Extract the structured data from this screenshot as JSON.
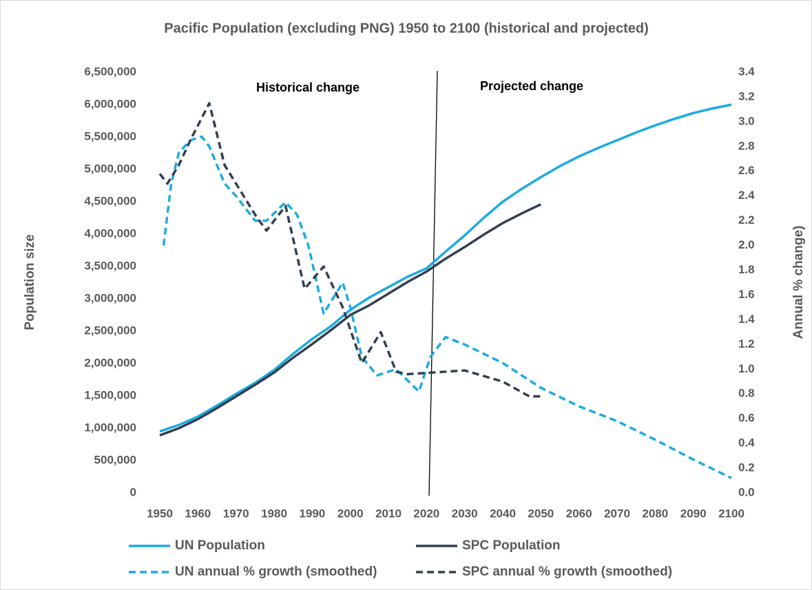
{
  "chart_data": {
    "type": "line",
    "title": "Pacific Population (excluding PNG) 1950 to 2100 (historical and projected)",
    "y_label": "Population size",
    "y2_label": "Annual % change)",
    "annotations": [
      "Historical change",
      "Projected change"
    ],
    "xlim": [
      1950,
      2100
    ],
    "xticks": [
      1950,
      1960,
      1970,
      1980,
      1990,
      2000,
      2010,
      2020,
      2030,
      2040,
      2050,
      2060,
      2070,
      2080,
      2090,
      2100
    ],
    "ylim": [
      0,
      6500000
    ],
    "yticks": [
      0,
      {
        "value": 500000,
        "label": "500,000"
      },
      {
        "value": 1000000,
        "label": "1,000,000"
      },
      {
        "value": 1500000,
        "label": "1,500,000"
      },
      {
        "value": 2000000,
        "label": "2,000,000"
      },
      {
        "value": 2500000,
        "label": "2,500,000"
      },
      {
        "value": 3000000,
        "label": "3,000,000"
      },
      {
        "value": 3500000,
        "label": "3,500,000"
      },
      {
        "value": 4000000,
        "label": "4,000,000"
      },
      {
        "value": 4500000,
        "label": "4,500,000"
      },
      {
        "value": 5000000,
        "label": "5,000,000"
      },
      {
        "value": 5500000,
        "label": "5,500,000"
      },
      {
        "value": 6000000,
        "label": "6,000,000"
      },
      {
        "value": 6500000,
        "label": "6,500,000"
      }
    ],
    "y2lim": [
      0,
      3.4
    ],
    "y2ticks": [
      {
        "value": 0,
        "label": "0.0"
      },
      {
        "value": 0.2,
        "label": "0.2"
      },
      {
        "value": 0.4,
        "label": "0.4"
      },
      {
        "value": 0.6,
        "label": "0.6"
      },
      {
        "value": 0.8,
        "label": "0.8"
      },
      {
        "value": 1,
        "label": "1.0"
      },
      {
        "value": 1.2,
        "label": "1.2"
      },
      {
        "value": 1.4,
        "label": "1.4"
      },
      {
        "value": 1.6,
        "label": "1.6"
      },
      {
        "value": 1.8,
        "label": "1.8"
      },
      {
        "value": 2,
        "label": "2.0"
      },
      {
        "value": 2.2,
        "label": "2.2"
      },
      {
        "value": 2.4,
        "label": "2.4"
      },
      {
        "value": 2.6,
        "label": "2.6"
      },
      {
        "value": 2.8,
        "label": "2.8"
      },
      {
        "value": 3,
        "label": "3.0"
      },
      {
        "value": 3.2,
        "label": "3.2"
      },
      {
        "value": 3.4,
        "label": "3.4"
      }
    ],
    "series": [
      {
        "name": "UN Population",
        "color": "#1aabe0",
        "dashed": false,
        "x": [
          1950,
          1955,
          1960,
          1965,
          1970,
          1975,
          1980,
          1985,
          1990,
          1995,
          2000,
          2005,
          2010,
          2015,
          2020,
          2025,
          2030,
          2035,
          2040,
          2045,
          2050,
          2055,
          2060,
          2065,
          2070,
          2075,
          2080,
          2085,
          2090,
          2095,
          2100
        ],
        "values": [
          950000,
          1050000,
          1180000,
          1350000,
          1530000,
          1700000,
          1900000,
          2150000,
          2380000,
          2580000,
          2830000,
          3020000,
          3180000,
          3340000,
          3470000,
          3730000,
          3980000,
          4250000,
          4500000,
          4700000,
          4880000,
          5050000,
          5200000,
          5330000,
          5450000,
          5570000,
          5680000,
          5780000,
          5870000,
          5940000,
          6000000
        ]
      },
      {
        "name": "SPC Population",
        "color": "#333f50",
        "dashed": false,
        "x": [
          1950,
          1955,
          1960,
          1965,
          1970,
          1975,
          1980,
          1985,
          1990,
          1995,
          2000,
          2005,
          2010,
          2015,
          2020,
          2025,
          2030,
          2035,
          2040,
          2045,
          2050
        ],
        "values": [
          890000,
          1000000,
          1140000,
          1310000,
          1490000,
          1670000,
          1860000,
          2090000,
          2300000,
          2520000,
          2750000,
          2900000,
          3080000,
          3260000,
          3420000,
          3620000,
          3800000,
          3990000,
          4170000,
          4320000,
          4460000
        ]
      },
      {
        "name": "UN annual % growth (smoothed)",
        "color": "#1aabe0",
        "dashed": true,
        "axis": "y2",
        "x": [
          1951,
          1953,
          1955,
          1958,
          1961,
          1963,
          1967,
          1970,
          1975,
          1978,
          1983,
          1986,
          1989,
          1993,
          1998,
          2000,
          2003,
          2007,
          2012,
          2018,
          2021,
          2025,
          2030,
          2040,
          2050,
          2060,
          2070,
          2080,
          2090,
          2100
        ],
        "values": [
          2.0,
          2.5,
          2.75,
          2.85,
          2.88,
          2.8,
          2.5,
          2.4,
          2.2,
          2.2,
          2.35,
          2.25,
          2.0,
          1.45,
          1.7,
          1.5,
          1.1,
          0.95,
          1.0,
          0.82,
          1.1,
          1.26,
          1.2,
          1.05,
          0.85,
          0.7,
          0.58,
          0.43,
          0.27,
          0.12
        ]
      },
      {
        "name": "SPC annual % growth (smoothed)",
        "color": "#333f50",
        "dashed": true,
        "axis": "y2",
        "x": [
          1950,
          1952,
          1955,
          1958,
          1963,
          1967,
          1970,
          1975,
          1978,
          1983,
          1988,
          1993,
          1998,
          2003,
          2008,
          2012,
          2015,
          2020,
          2030,
          2040,
          2047,
          2050
        ],
        "values": [
          2.58,
          2.5,
          2.65,
          2.85,
          3.15,
          2.65,
          2.5,
          2.25,
          2.12,
          2.32,
          1.65,
          1.83,
          1.5,
          1.05,
          1.3,
          0.98,
          0.96,
          0.97,
          0.99,
          0.9,
          0.78,
          0.78
        ]
      }
    ]
  }
}
